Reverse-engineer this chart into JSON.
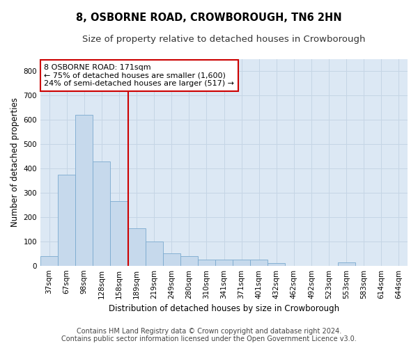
{
  "title": "8, OSBORNE ROAD, CROWBOROUGH, TN6 2HN",
  "subtitle": "Size of property relative to detached houses in Crowborough",
  "xlabel": "Distribution of detached houses by size in Crowborough",
  "ylabel": "Number of detached properties",
  "footer_line1": "Contains HM Land Registry data © Crown copyright and database right 2024.",
  "footer_line2": "Contains public sector information licensed under the Open Government Licence v3.0.",
  "bins": [
    "37sqm",
    "67sqm",
    "98sqm",
    "128sqm",
    "158sqm",
    "189sqm",
    "219sqm",
    "249sqm",
    "280sqm",
    "310sqm",
    "341sqm",
    "371sqm",
    "401sqm",
    "432sqm",
    "462sqm",
    "492sqm",
    "523sqm",
    "553sqm",
    "583sqm",
    "614sqm",
    "644sqm"
  ],
  "values": [
    40,
    375,
    620,
    430,
    265,
    155,
    100,
    50,
    40,
    25,
    25,
    25,
    25,
    10,
    0,
    0,
    0,
    12,
    0,
    0,
    0
  ],
  "bar_color": "#c6d9ec",
  "bar_edge_color": "#7aaacf",
  "grid_color": "#c5d5e5",
  "background_color": "#dce8f4",
  "vline_x_index": 4.5,
  "vline_color": "#cc0000",
  "annotation_line1": "8 OSBORNE ROAD: 171sqm",
  "annotation_line2": "← 75% of detached houses are smaller (1,600)",
  "annotation_line3": "24% of semi-detached houses are larger (517) →",
  "annotation_box_color": "#ffffff",
  "annotation_border_color": "#cc0000",
  "ylim": [
    0,
    850
  ],
  "yticks": [
    0,
    100,
    200,
    300,
    400,
    500,
    600,
    700,
    800
  ],
  "title_fontsize": 10.5,
  "subtitle_fontsize": 9.5,
  "axis_label_fontsize": 8.5,
  "tick_fontsize": 7.5,
  "annotation_fontsize": 8,
  "footer_fontsize": 7
}
